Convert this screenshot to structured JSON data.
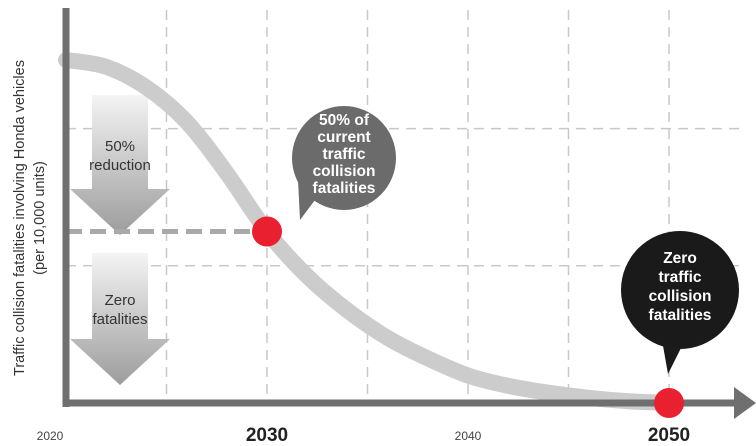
{
  "colors": {
    "curve": "#cccccc",
    "axis": "#6f6f6f",
    "grid": "#c8c8c8",
    "marker": "#e8202f",
    "bubble_gray": "#6b6b6b",
    "bubble_black": "#1a1a1a",
    "arrow_gradient_top": "#f4f4f4",
    "arrow_gradient_bottom": "#9c9c9c"
  },
  "chart_data": {
    "type": "line",
    "title": "",
    "xlabel": "",
    "ylabel_lines": [
      "Traffic collision fatalities involving Honda vehicles",
      "(per 10,000 units)"
    ],
    "x_ticks": [
      {
        "value": 2020,
        "label": "2020",
        "emphasis": false
      },
      {
        "value": 2030,
        "label": "2030",
        "emphasis": true
      },
      {
        "value": 2040,
        "label": "2040",
        "emphasis": false
      },
      {
        "value": 2050,
        "label": "2050",
        "emphasis": true
      }
    ],
    "xlim": [
      2020,
      2053
    ],
    "ylim": [
      0,
      100
    ],
    "y_ticks_visible": false,
    "grid": true,
    "series": [
      {
        "x": [
          2020,
          2022,
          2024,
          2026,
          2028,
          2030,
          2032,
          2034,
          2036,
          2038,
          2040,
          2042,
          2044,
          2046,
          2048,
          2050
        ],
        "y": [
          100,
          98,
          92,
          82,
          67,
          50,
          37,
          27,
          19,
          13,
          8,
          5,
          3,
          1.5,
          0.5,
          0
        ]
      }
    ],
    "markers": [
      {
        "x": 2030,
        "y": 50
      },
      {
        "x": 2050,
        "y": 0
      }
    ],
    "reference_line": {
      "y": 50,
      "from_x": 2020,
      "to_x": 2030
    },
    "down_arrows": [
      {
        "label_lines": [
          "50%",
          "reduction"
        ]
      },
      {
        "label_lines": [
          "Zero",
          "fatalities"
        ]
      }
    ],
    "callouts": [
      {
        "lines": [
          "50% of",
          "current",
          "traffic",
          "collision",
          "fatalities"
        ]
      },
      {
        "lines": [
          "Zero",
          "traffic",
          "collision",
          "fatalities"
        ]
      }
    ]
  }
}
